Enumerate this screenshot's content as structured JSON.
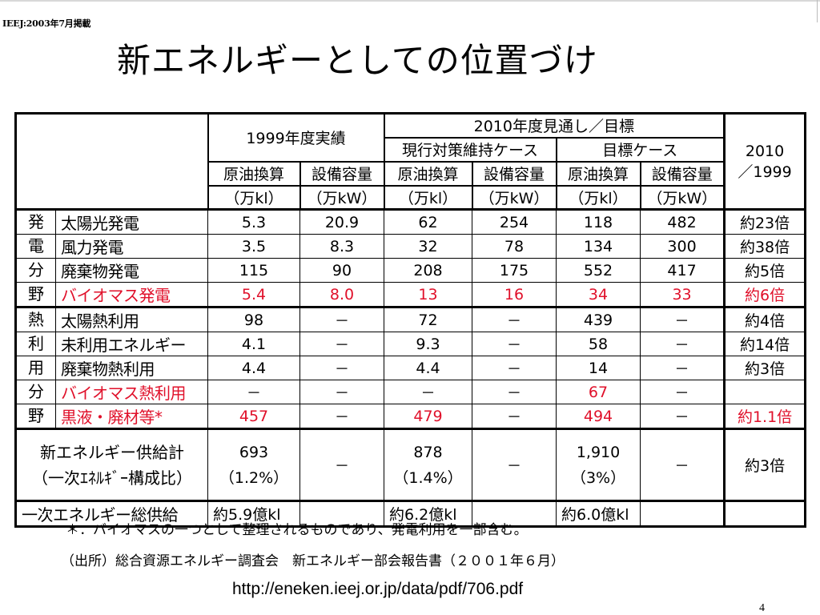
{
  "header_note": "IEEJ:2003年7月掲載",
  "title": "新エネルギーとしての位置づけ",
  "table": {
    "head": {
      "group_1999": "1999年度実績",
      "group_2010": "2010年度見通し／目標",
      "case_current": "現行対策維持ケース",
      "case_target": "目標ケース",
      "ratio": "2010\n／1999",
      "crude": "原油換算",
      "capacity": "設備容量",
      "unit_kl": "（万kl）",
      "unit_kw": "（万kW）"
    },
    "power_category": [
      "発",
      "電",
      "分",
      "野"
    ],
    "heat_category": [
      "熱",
      "利",
      "用",
      "分",
      "野"
    ],
    "power_rows": [
      {
        "label": "太陽光発電",
        "v": [
          "5.3",
          "20.9",
          "62",
          "254",
          "118",
          "482"
        ],
        "ratio": "約23倍",
        "red": false
      },
      {
        "label": "風力発電",
        "v": [
          "3.5",
          "8.3",
          "32",
          "78",
          "134",
          "300"
        ],
        "ratio": "約38倍",
        "red": false
      },
      {
        "label": "廃棄物発電",
        "v": [
          "115",
          "90",
          "208",
          "175",
          "552",
          "417"
        ],
        "ratio": "約5倍",
        "red": false
      },
      {
        "label": "バイオマス発電",
        "v": [
          "5.4",
          "8.0",
          "13",
          "16",
          "34",
          "33"
        ],
        "ratio": "約6倍",
        "red": true
      }
    ],
    "heat_rows": [
      {
        "label": "太陽熱利用",
        "v": [
          "98",
          "－",
          "72",
          "－",
          "439",
          "－"
        ],
        "ratio": "約4倍",
        "red": false
      },
      {
        "label": "未利用エネルギー",
        "v": [
          "4.1",
          "－",
          "9.3",
          "－",
          "58",
          "－"
        ],
        "ratio": "約14倍",
        "red": false
      },
      {
        "label": "廃棄物熱利用",
        "v": [
          "4.4",
          "－",
          "4.4",
          "－",
          "14",
          "－"
        ],
        "ratio": "約3倍",
        "red": false
      },
      {
        "label": "バイオマス熱利用",
        "v": [
          "－",
          "－",
          "－",
          "－",
          "67",
          "－"
        ],
        "ratio": "",
        "red": true
      },
      {
        "label": "黒液・廃材等*",
        "v": [
          "457",
          "－",
          "479",
          "－",
          "494",
          "－"
        ],
        "ratio": "約1.1倍",
        "red": true
      }
    ],
    "supply_total": {
      "label_line1": "新エネルギー供給計",
      "label_line2": "（一次ｴﾈﾙｷﾞｰ構成比）",
      "v1999": "693",
      "p1999": "（1.2%）",
      "dash1": "－",
      "vcur": "878",
      "pcur": "（1.4%）",
      "dash2": "－",
      "vtgt": "1,910",
      "ptgt": "（3%）",
      "dash3": "－",
      "ratio": "約3倍"
    },
    "primary_total": {
      "label": "一次エネルギー総供給",
      "v1999": "約5.9億kl",
      "vcur": "約6.2億kl",
      "vtgt": "約6.0億kl"
    }
  },
  "footnote": "＊：バイオマスの一つとして整理されるものであり、発電利用を一部含む。",
  "source": "（出所）総合資源エネルギー調査会　新エネルギー部会報告書（２００１年６月）",
  "url": "http://eneken.ieej.or.jp/data/pdf/706.pdf",
  "page_number": "4",
  "colors": {
    "highlight_red": "#e0102a",
    "rule": "#000000"
  }
}
